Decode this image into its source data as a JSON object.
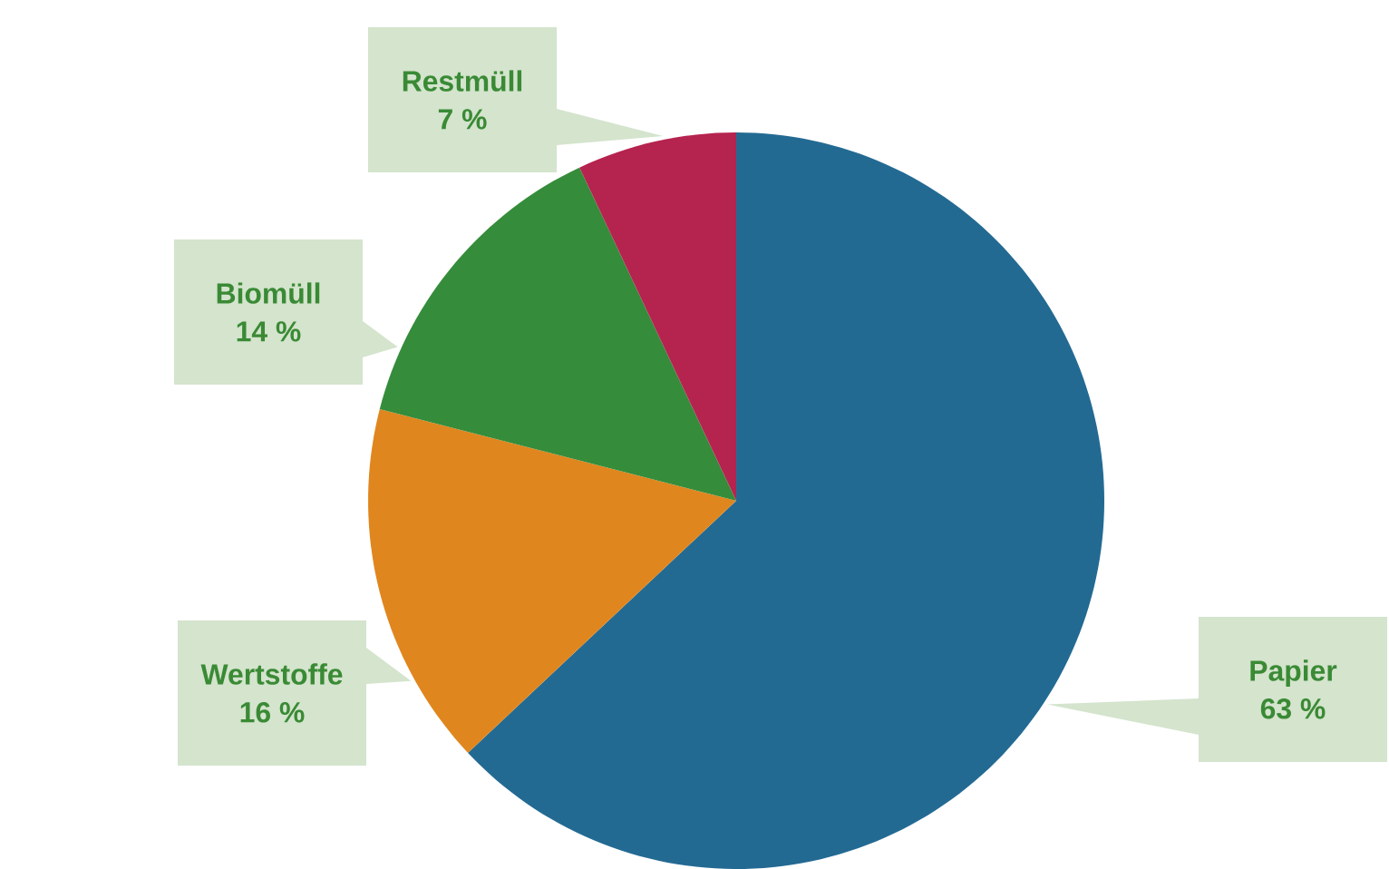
{
  "chart_data": {
    "type": "pie",
    "categories": [
      "Papier",
      "Wertstoffe",
      "Biomüll",
      "Restmüll"
    ],
    "values": [
      63,
      16,
      14,
      7
    ],
    "colors": [
      "#236a93",
      "#e0861e",
      "#358c3a",
      "#b5234f"
    ],
    "value_labels": [
      "63 %",
      "16 %",
      "14 %",
      "7 %"
    ]
  }
}
